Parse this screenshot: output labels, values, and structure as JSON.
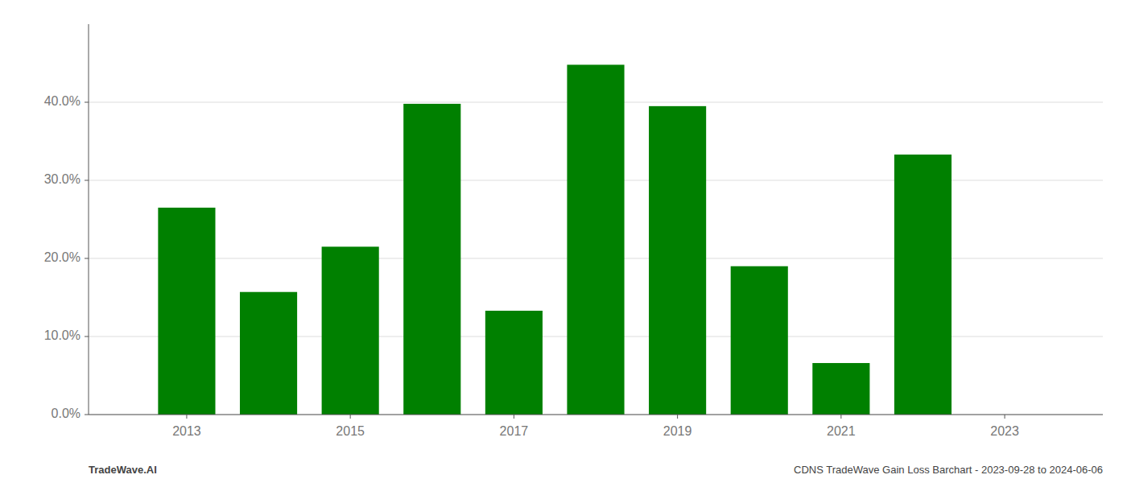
{
  "chart_data": {
    "type": "bar",
    "x": [
      2013,
      2014,
      2015,
      2016,
      2017,
      2018,
      2019,
      2020,
      2021,
      2022
    ],
    "values": [
      0.265,
      0.157,
      0.215,
      0.398,
      0.133,
      0.448,
      0.395,
      0.19,
      0.066,
      0.333
    ],
    "color": "#008000",
    "xlim": [
      2011.8,
      2024.2
    ],
    "xticks": [
      2013,
      2015,
      2017,
      2019,
      2021,
      2023
    ],
    "ylim": [
      0,
      0.5
    ],
    "yticks": [
      {
        "value": 0.0,
        "label": "0.0%"
      },
      {
        "value": 0.1,
        "label": "10.0%"
      },
      {
        "value": 0.2,
        "label": "20.0%"
      },
      {
        "value": 0.3,
        "label": "30.0%"
      },
      {
        "value": 0.4,
        "label": "40.0%"
      }
    ],
    "grid": true,
    "annotations": [
      "TradeWave.AI",
      "CDNS TradeWave Gain Loss Barchart - 2023-09-28 to 2024-06-06"
    ]
  }
}
